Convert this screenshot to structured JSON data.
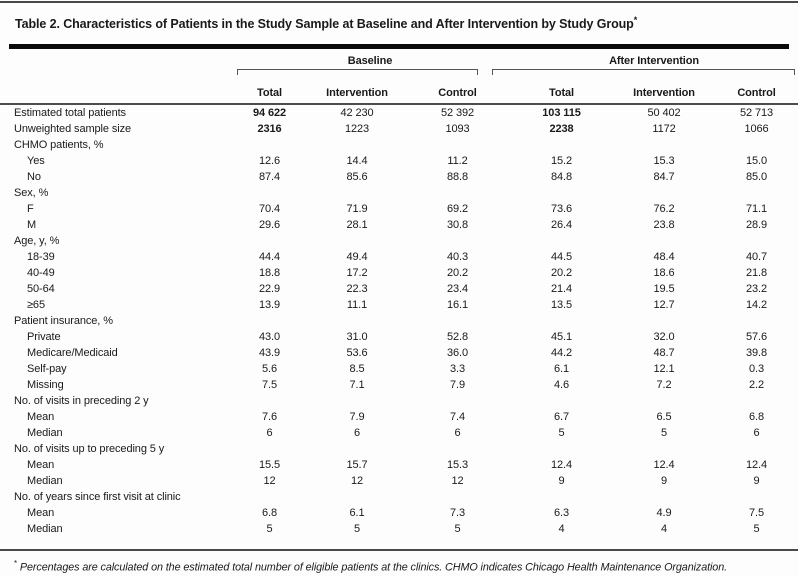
{
  "table": {
    "title": "Table 2. Characteristics of Patients in the Study Sample at Baseline and After Intervention by Study Group",
    "title_marker": "*",
    "column_groups": [
      {
        "label": "Baseline",
        "columns": [
          "Total",
          "Intervention",
          "Control"
        ]
      },
      {
        "label": "After Intervention",
        "columns": [
          "Total",
          "Intervention",
          "Control"
        ]
      }
    ],
    "rows": [
      {
        "label": "Estimated total patients",
        "indent": 0,
        "values": [
          "94 622",
          "42 230",
          "52 392",
          "103 115",
          "50 402",
          "52 713"
        ],
        "bold_cols": [
          0,
          3
        ]
      },
      {
        "label": "Unweighted sample size",
        "indent": 0,
        "values": [
          "2316",
          "1223",
          "1093",
          "2238",
          "1172",
          "1066"
        ],
        "bold_cols": [
          0,
          3
        ]
      },
      {
        "label": "CHMO patients, %",
        "indent": 0,
        "values": [
          "",
          "",
          "",
          "",
          "",
          ""
        ]
      },
      {
        "label": "Yes",
        "indent": 1,
        "values": [
          "12.6",
          "14.4",
          "11.2",
          "15.2",
          "15.3",
          "15.0"
        ]
      },
      {
        "label": "No",
        "indent": 1,
        "values": [
          "87.4",
          "85.6",
          "88.8",
          "84.8",
          "84.7",
          "85.0"
        ]
      },
      {
        "label": "Sex, %",
        "indent": 0,
        "values": [
          "",
          "",
          "",
          "",
          "",
          ""
        ]
      },
      {
        "label": "F",
        "indent": 1,
        "values": [
          "70.4",
          "71.9",
          "69.2",
          "73.6",
          "76.2",
          "71.1"
        ]
      },
      {
        "label": "M",
        "indent": 1,
        "values": [
          "29.6",
          "28.1",
          "30.8",
          "26.4",
          "23.8",
          "28.9"
        ]
      },
      {
        "label": "Age, y, %",
        "indent": 0,
        "values": [
          "",
          "",
          "",
          "",
          "",
          ""
        ]
      },
      {
        "label": "18-39",
        "indent": 1,
        "values": [
          "44.4",
          "49.4",
          "40.3",
          "44.5",
          "48.4",
          "40.7"
        ]
      },
      {
        "label": "40-49",
        "indent": 1,
        "values": [
          "18.8",
          "17.2",
          "20.2",
          "20.2",
          "18.6",
          "21.8"
        ]
      },
      {
        "label": "50-64",
        "indent": 1,
        "values": [
          "22.9",
          "22.3",
          "23.4",
          "21.4",
          "19.5",
          "23.2"
        ]
      },
      {
        "label": "≥65",
        "indent": 1,
        "values": [
          "13.9",
          "11.1",
          "16.1",
          "13.5",
          "12.7",
          "14.2"
        ]
      },
      {
        "label": "Patient insurance, %",
        "indent": 0,
        "values": [
          "",
          "",
          "",
          "",
          "",
          ""
        ]
      },
      {
        "label": "Private",
        "indent": 1,
        "values": [
          "43.0",
          "31.0",
          "52.8",
          "45.1",
          "32.0",
          "57.6"
        ]
      },
      {
        "label": "Medicare/Medicaid",
        "indent": 1,
        "values": [
          "43.9",
          "53.6",
          "36.0",
          "44.2",
          "48.7",
          "39.8"
        ]
      },
      {
        "label": "Self-pay",
        "indent": 1,
        "values": [
          "5.6",
          "8.5",
          "3.3",
          "6.1",
          "12.1",
          "0.3"
        ]
      },
      {
        "label": "Missing",
        "indent": 1,
        "values": [
          "7.5",
          "7.1",
          "7.9",
          "4.6",
          "7.2",
          "2.2"
        ]
      },
      {
        "label": "No. of visits in preceding 2 y",
        "indent": 0,
        "values": [
          "",
          "",
          "",
          "",
          "",
          ""
        ]
      },
      {
        "label": "Mean",
        "indent": 1,
        "values": [
          "7.6",
          "7.9",
          "7.4",
          "6.7",
          "6.5",
          "6.8"
        ]
      },
      {
        "label": "Median",
        "indent": 1,
        "values": [
          "6",
          "6",
          "6",
          "5",
          "5",
          "6"
        ]
      },
      {
        "label": "No. of visits up to preceding 5 y",
        "indent": 0,
        "values": [
          "",
          "",
          "",
          "",
          "",
          ""
        ]
      },
      {
        "label": "Mean",
        "indent": 1,
        "values": [
          "15.5",
          "15.7",
          "15.3",
          "12.4",
          "12.4",
          "12.4"
        ]
      },
      {
        "label": "Median",
        "indent": 1,
        "values": [
          "12",
          "12",
          "12",
          "9",
          "9",
          "9"
        ]
      },
      {
        "label": "No. of years since first visit at clinic",
        "indent": 0,
        "values": [
          "",
          "",
          "",
          "",
          "",
          ""
        ]
      },
      {
        "label": "Mean",
        "indent": 1,
        "values": [
          "6.8",
          "6.1",
          "7.3",
          "6.3",
          "4.9",
          "7.5"
        ]
      },
      {
        "label": "Median",
        "indent": 1,
        "values": [
          "5",
          "5",
          "5",
          "4",
          "4",
          "5"
        ]
      }
    ],
    "footnote_marker": "*",
    "footnote": "Percentages are calculated on the estimated total number of eligible patients at the clinics. CHMO indicates Chicago Health Maintenance Organization."
  }
}
